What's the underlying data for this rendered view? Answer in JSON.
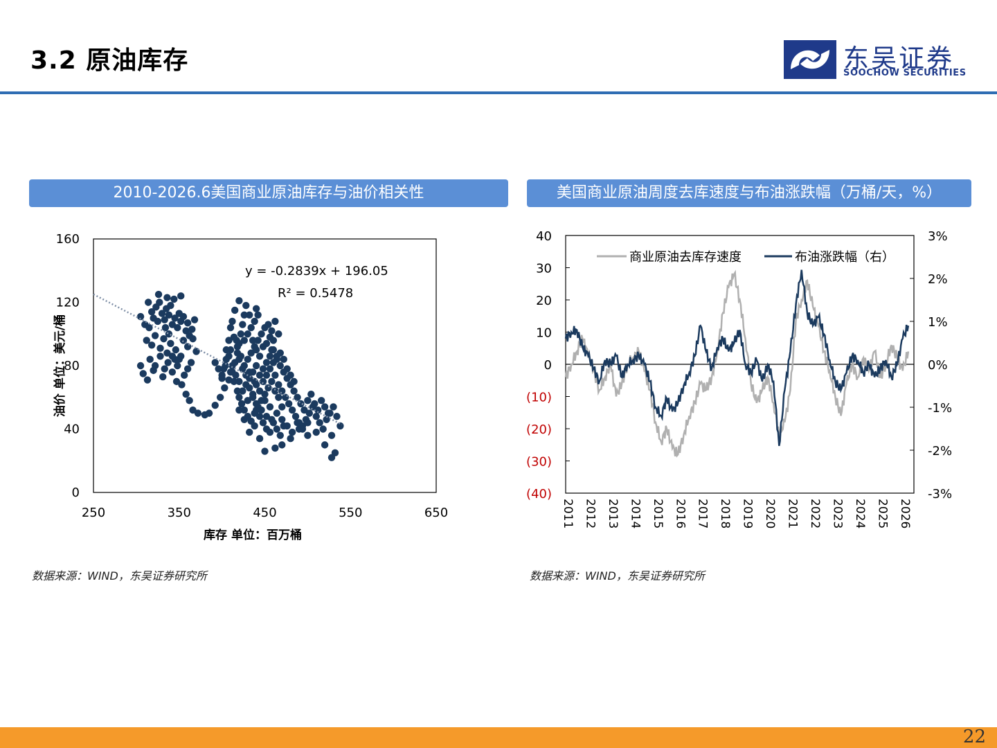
{
  "header": {
    "title": "3.2 原油库存"
  },
  "logo": {
    "cn": "东吴证券",
    "en": "SOOCHOW SECURITIES",
    "accent_color": "#1f3a8a"
  },
  "panels": [
    {
      "title": "2010-2026.6美国商业原油库存与油价相关性",
      "source": "数据来源：WIND，东吴证券研究所"
    },
    {
      "title": "美国商业原油周度去库速度与布油涨跌幅（万桶/天，%）",
      "source": "数据来源：WIND，东吴证券研究所"
    }
  ],
  "page_number": "22",
  "chart_data": [
    {
      "type": "scatter",
      "xlabel": "库存 单位：百万桶",
      "ylabel": "油价 单位：美元/桶",
      "xlim": [
        250,
        650
      ],
      "ylim": [
        0,
        160
      ],
      "x_ticks": [
        "250",
        "350",
        "450",
        "550",
        "650"
      ],
      "y_ticks": [
        "0",
        "40",
        "80",
        "120",
        "160"
      ],
      "point_color": "#1b3a5e",
      "trendline": {
        "slope": -0.2839,
        "intercept": 196.05,
        "style": "dotted",
        "color": "#7f8fa6"
      },
      "annotations": [
        "y = -0.2839x + 196.05",
        "R² = 0.5478"
      ],
      "grid": false,
      "points": [
        [
          305,
          111
        ],
        [
          310,
          106
        ],
        [
          315,
          104
        ],
        [
          318,
          114
        ],
        [
          320,
          110
        ],
        [
          323,
          117
        ],
        [
          325,
          108
        ],
        [
          327,
          120
        ],
        [
          330,
          113
        ],
        [
          333,
          109
        ],
        [
          335,
          116
        ],
        [
          338,
          112
        ],
        [
          340,
          118
        ],
        [
          342,
          106
        ],
        [
          345,
          110
        ],
        [
          348,
          104
        ],
        [
          350,
          113
        ],
        [
          352,
          108
        ],
        [
          355,
          111
        ],
        [
          358,
          102
        ],
        [
          360,
          107
        ],
        [
          362,
          99
        ],
        [
          365,
          103
        ],
        [
          368,
          109
        ],
        [
          312,
          96
        ],
        [
          318,
          93
        ],
        [
          322,
          99
        ],
        [
          328,
          91
        ],
        [
          332,
          97
        ],
        [
          336,
          88
        ],
        [
          340,
          94
        ],
        [
          346,
          90
        ],
        [
          350,
          84
        ],
        [
          355,
          96
        ],
        [
          360,
          92
        ],
        [
          370,
          89
        ],
        [
          366,
          97
        ],
        [
          314,
          120
        ],
        [
          326,
          125
        ],
        [
          336,
          123
        ],
        [
          344,
          122
        ],
        [
          352,
          124
        ],
        [
          338,
          100
        ],
        [
          334,
          104
        ],
        [
          316,
          84
        ],
        [
          322,
          80
        ],
        [
          328,
          86
        ],
        [
          333,
          78
        ],
        [
          337,
          82
        ],
        [
          342,
          76
        ],
        [
          345,
          84
        ],
        [
          348,
          80
        ],
        [
          352,
          86
        ],
        [
          356,
          74
        ],
        [
          360,
          78
        ],
        [
          364,
          82
        ],
        [
          305,
          80
        ],
        [
          308,
          75
        ],
        [
          313,
          71
        ],
        [
          320,
          77
        ],
        [
          342,
          86
        ],
        [
          331,
          73
        ],
        [
          347,
          70
        ],
        [
          353,
          68
        ],
        [
          358,
          62
        ],
        [
          362,
          58
        ],
        [
          366,
          52
        ],
        [
          372,
          50
        ],
        [
          380,
          49
        ],
        [
          385,
          50
        ],
        [
          392,
          55
        ],
        [
          398,
          60
        ],
        [
          403,
          66
        ],
        [
          408,
          71
        ],
        [
          412,
          76
        ],
        [
          415,
          82
        ],
        [
          418,
          88
        ],
        [
          420,
          94
        ],
        [
          422,
          100
        ],
        [
          424,
          106
        ],
        [
          426,
          112
        ],
        [
          428,
          118
        ],
        [
          420,
          121
        ],
        [
          415,
          115
        ],
        [
          412,
          108
        ],
        [
          417,
          96
        ],
        [
          410,
          90
        ],
        [
          405,
          84
        ],
        [
          402,
          78
        ],
        [
          400,
          72
        ],
        [
          410,
          76
        ],
        [
          414,
          70
        ],
        [
          418,
          64
        ],
        [
          420,
          60
        ],
        [
          423,
          56
        ],
        [
          426,
          52
        ],
        [
          430,
          48
        ],
        [
          434,
          45
        ],
        [
          438,
          50
        ],
        [
          442,
          54
        ],
        [
          446,
          58
        ],
        [
          450,
          62
        ],
        [
          454,
          66
        ],
        [
          458,
          70
        ],
        [
          462,
          74
        ],
        [
          466,
          68
        ],
        [
          470,
          64
        ],
        [
          474,
          60
        ],
        [
          478,
          56
        ],
        [
          482,
          52
        ],
        [
          486,
          48
        ],
        [
          490,
          44
        ],
        [
          494,
          42
        ],
        [
          498,
          46
        ],
        [
          502,
          50
        ],
        [
          506,
          54
        ],
        [
          510,
          48
        ],
        [
          514,
          44
        ],
        [
          518,
          40
        ],
        [
          522,
          46
        ],
        [
          526,
          50
        ],
        [
          530,
          54
        ],
        [
          534,
          48
        ],
        [
          538,
          42
        ],
        [
          528,
          36
        ],
        [
          532,
          25
        ],
        [
          528,
          22
        ],
        [
          520,
          30
        ],
        [
          510,
          38
        ],
        [
          500,
          36
        ],
        [
          490,
          40
        ],
        [
          480,
          34
        ],
        [
          470,
          30
        ],
        [
          462,
          28
        ],
        [
          450,
          26
        ],
        [
          444,
          34
        ],
        [
          438,
          42
        ],
        [
          432,
          38
        ],
        [
          426,
          46
        ],
        [
          420,
          52
        ],
        [
          430,
          58
        ],
        [
          436,
          62
        ],
        [
          440,
          68
        ],
        [
          444,
          74
        ],
        [
          448,
          78
        ],
        [
          452,
          82
        ],
        [
          456,
          86
        ],
        [
          460,
          90
        ],
        [
          464,
          84
        ],
        [
          468,
          80
        ],
        [
          472,
          76
        ],
        [
          476,
          72
        ],
        [
          480,
          68
        ],
        [
          484,
          64
        ],
        [
          488,
          60
        ],
        [
          492,
          56
        ],
        [
          496,
          52
        ],
        [
          500,
          58
        ],
        [
          504,
          62
        ],
        [
          508,
          56
        ],
        [
          512,
          52
        ],
        [
          516,
          58
        ],
        [
          520,
          54
        ],
        [
          524,
          50
        ],
        [
          430,
          84
        ],
        [
          434,
          88
        ],
        [
          438,
          92
        ],
        [
          442,
          96
        ],
        [
          446,
          100
        ],
        [
          450,
          104
        ],
        [
          454,
          106
        ],
        [
          458,
          102
        ],
        [
          462,
          108
        ],
        [
          448,
          92
        ],
        [
          444,
          86
        ],
        [
          440,
          80
        ],
        [
          436,
          76
        ],
        [
          432,
          72
        ],
        [
          428,
          68
        ],
        [
          424,
          64
        ],
        [
          420,
          70
        ],
        [
          416,
          74
        ],
        [
          412,
          80
        ],
        [
          408,
          86
        ],
        [
          404,
          80
        ],
        [
          400,
          74
        ],
        [
          396,
          78
        ],
        [
          392,
          82
        ],
        [
          440,
          56
        ],
        [
          446,
          52
        ],
        [
          452,
          48
        ],
        [
          458,
          46
        ],
        [
          464,
          50
        ],
        [
          470,
          46
        ],
        [
          476,
          42
        ],
        [
          482,
          38
        ],
        [
          488,
          44
        ],
        [
          494,
          40
        ],
        [
          500,
          44
        ],
        [
          470,
          54
        ],
        [
          466,
          60
        ],
        [
          462,
          64
        ],
        [
          456,
          54
        ],
        [
          450,
          58
        ],
        [
          444,
          64
        ],
        [
          438,
          70
        ],
        [
          432,
          76
        ],
        [
          426,
          80
        ],
        [
          422,
          86
        ],
        [
          418,
          92
        ],
        [
          414,
          98
        ],
        [
          410,
          104
        ],
        [
          408,
          96
        ],
        [
          405,
          90
        ],
        [
          440,
          90
        ],
        [
          436,
          96
        ],
        [
          448,
          70
        ],
        [
          452,
          74
        ],
        [
          456,
          78
        ],
        [
          460,
          82
        ],
        [
          464,
          86
        ],
        [
          468,
          88
        ],
        [
          472,
          84
        ],
        [
          476,
          78
        ],
        [
          480,
          74
        ],
        [
          484,
          70
        ],
        [
          420,
          84
        ],
        [
          424,
          78
        ],
        [
          428,
          74
        ],
        [
          432,
          66
        ],
        [
          436,
          60
        ],
        [
          440,
          52
        ],
        [
          444,
          48
        ],
        [
          448,
          44
        ],
        [
          452,
          40
        ],
        [
          456,
          38
        ],
        [
          460,
          44
        ],
        [
          464,
          40
        ],
        [
          468,
          36
        ],
        [
          472,
          42
        ],
        [
          456,
          98
        ],
        [
          460,
          96
        ],
        [
          466,
          100
        ],
        [
          452,
          94
        ],
        [
          458,
          90
        ],
        [
          430,
          100
        ],
        [
          426,
          96
        ],
        [
          434,
          104
        ],
        [
          438,
          108
        ],
        [
          442,
          112
        ],
        [
          440,
          116
        ],
        [
          432,
          112
        ]
      ]
    },
    {
      "type": "line",
      "legend": [
        "商业原油去库存速度",
        "布油涨跌幅（右）"
      ],
      "legend_position": "top",
      "x_ticks": [
        "2011",
        "2012",
        "2013",
        "2014",
        "2015",
        "2016",
        "2017",
        "2018",
        "2019",
        "2020",
        "2021",
        "2022",
        "2023",
        "2024",
        "2025",
        "2026"
      ],
      "xlim": [
        2011,
        2026.5
      ],
      "ylim_left": [
        -40,
        40
      ],
      "ylim_right": [
        -3,
        3
      ],
      "y_ticks_left": [
        "40",
        "30",
        "20",
        "10",
        "0",
        "(10)",
        "(20)",
        "(30)",
        "(40)"
      ],
      "y_ticks_right": [
        "3%",
        "2%",
        "1%",
        "0%",
        "-1%",
        "-2%",
        "-3%"
      ],
      "negative_label_color": "#c00000",
      "series": [
        {
          "name": "商业原油去库存速度",
          "axis": "left",
          "color": "#b0b0b0",
          "x": [
            2011,
            2011.25,
            2011.5,
            2011.75,
            2012,
            2012.25,
            2012.5,
            2012.75,
            2013,
            2013.25,
            2013.5,
            2013.75,
            2014,
            2014.25,
            2014.5,
            2014.75,
            2015,
            2015.25,
            2015.5,
            2015.75,
            2016,
            2016.25,
            2016.5,
            2016.75,
            2017,
            2017.25,
            2017.5,
            2017.75,
            2018,
            2018.25,
            2018.5,
            2018.75,
            2019,
            2019.25,
            2019.5,
            2019.75,
            2020,
            2020.25,
            2020.5,
            2020.75,
            2021,
            2021.25,
            2021.5,
            2021.75,
            2022,
            2022.25,
            2022.5,
            2022.75,
            2023,
            2023.25,
            2023.5,
            2023.75,
            2024,
            2024.25,
            2024.5,
            2024.75,
            2025,
            2025.25,
            2025.5,
            2025.75,
            2026,
            2026.25
          ],
          "values": [
            -4,
            0,
            4,
            8,
            3,
            -2,
            -8,
            -4,
            0,
            -10,
            -6,
            0,
            2,
            4,
            -2,
            -8,
            -18,
            -24,
            -20,
            -26,
            -28,
            -22,
            -16,
            -12,
            -6,
            -8,
            -4,
            4,
            16,
            24,
            28,
            20,
            8,
            -6,
            -12,
            -8,
            -4,
            -12,
            -22,
            -18,
            -8,
            14,
            20,
            26,
            18,
            12,
            4,
            -2,
            -10,
            -16,
            -6,
            0,
            -4,
            2,
            -2,
            4,
            -4,
            0,
            6,
            2,
            -2,
            4
          ]
        },
        {
          "name": "布油涨跌幅（右）",
          "axis": "right",
          "color": "#1b3a5e",
          "x": [
            2011,
            2011.25,
            2011.5,
            2011.75,
            2012,
            2012.25,
            2012.5,
            2012.75,
            2013,
            2013.25,
            2013.5,
            2013.75,
            2014,
            2014.25,
            2014.5,
            2014.75,
            2015,
            2015.25,
            2015.5,
            2015.75,
            2016,
            2016.25,
            2016.5,
            2016.75,
            2017,
            2017.25,
            2017.5,
            2017.75,
            2018,
            2018.25,
            2018.5,
            2018.75,
            2019,
            2019.25,
            2019.5,
            2019.75,
            2020,
            2020.25,
            2020.5,
            2020.75,
            2021,
            2021.25,
            2021.5,
            2021.75,
            2022,
            2022.25,
            2022.5,
            2022.75,
            2023,
            2023.25,
            2023.5,
            2023.75,
            2024,
            2024.25,
            2024.5,
            2024.75,
            2025,
            2025.25,
            2025.5,
            2025.75,
            2026,
            2026.25
          ],
          "values": [
            0.6,
            0.75,
            0.8,
            0.4,
            0.2,
            -0.1,
            -0.4,
            0.1,
            0.0,
            0.2,
            -0.3,
            0.0,
            0.1,
            0.2,
            0.0,
            -0.4,
            -1.0,
            -1.2,
            -0.8,
            -1.1,
            -0.9,
            -0.5,
            -0.2,
            0.2,
            0.9,
            0.3,
            -0.1,
            0.4,
            0.6,
            0.3,
            0.5,
            0.8,
            0.0,
            -0.2,
            0.1,
            -0.4,
            0.0,
            -0.4,
            -1.9,
            -0.6,
            0.3,
            1.4,
            2.2,
            1.2,
            0.9,
            1.1,
            0.7,
            0.1,
            -0.4,
            -0.6,
            -0.2,
            0.2,
            0.1,
            -0.2,
            0.0,
            -0.3,
            -0.1,
            0.1,
            -0.3,
            0.0,
            0.6,
            0.9
          ]
        }
      ]
    }
  ]
}
